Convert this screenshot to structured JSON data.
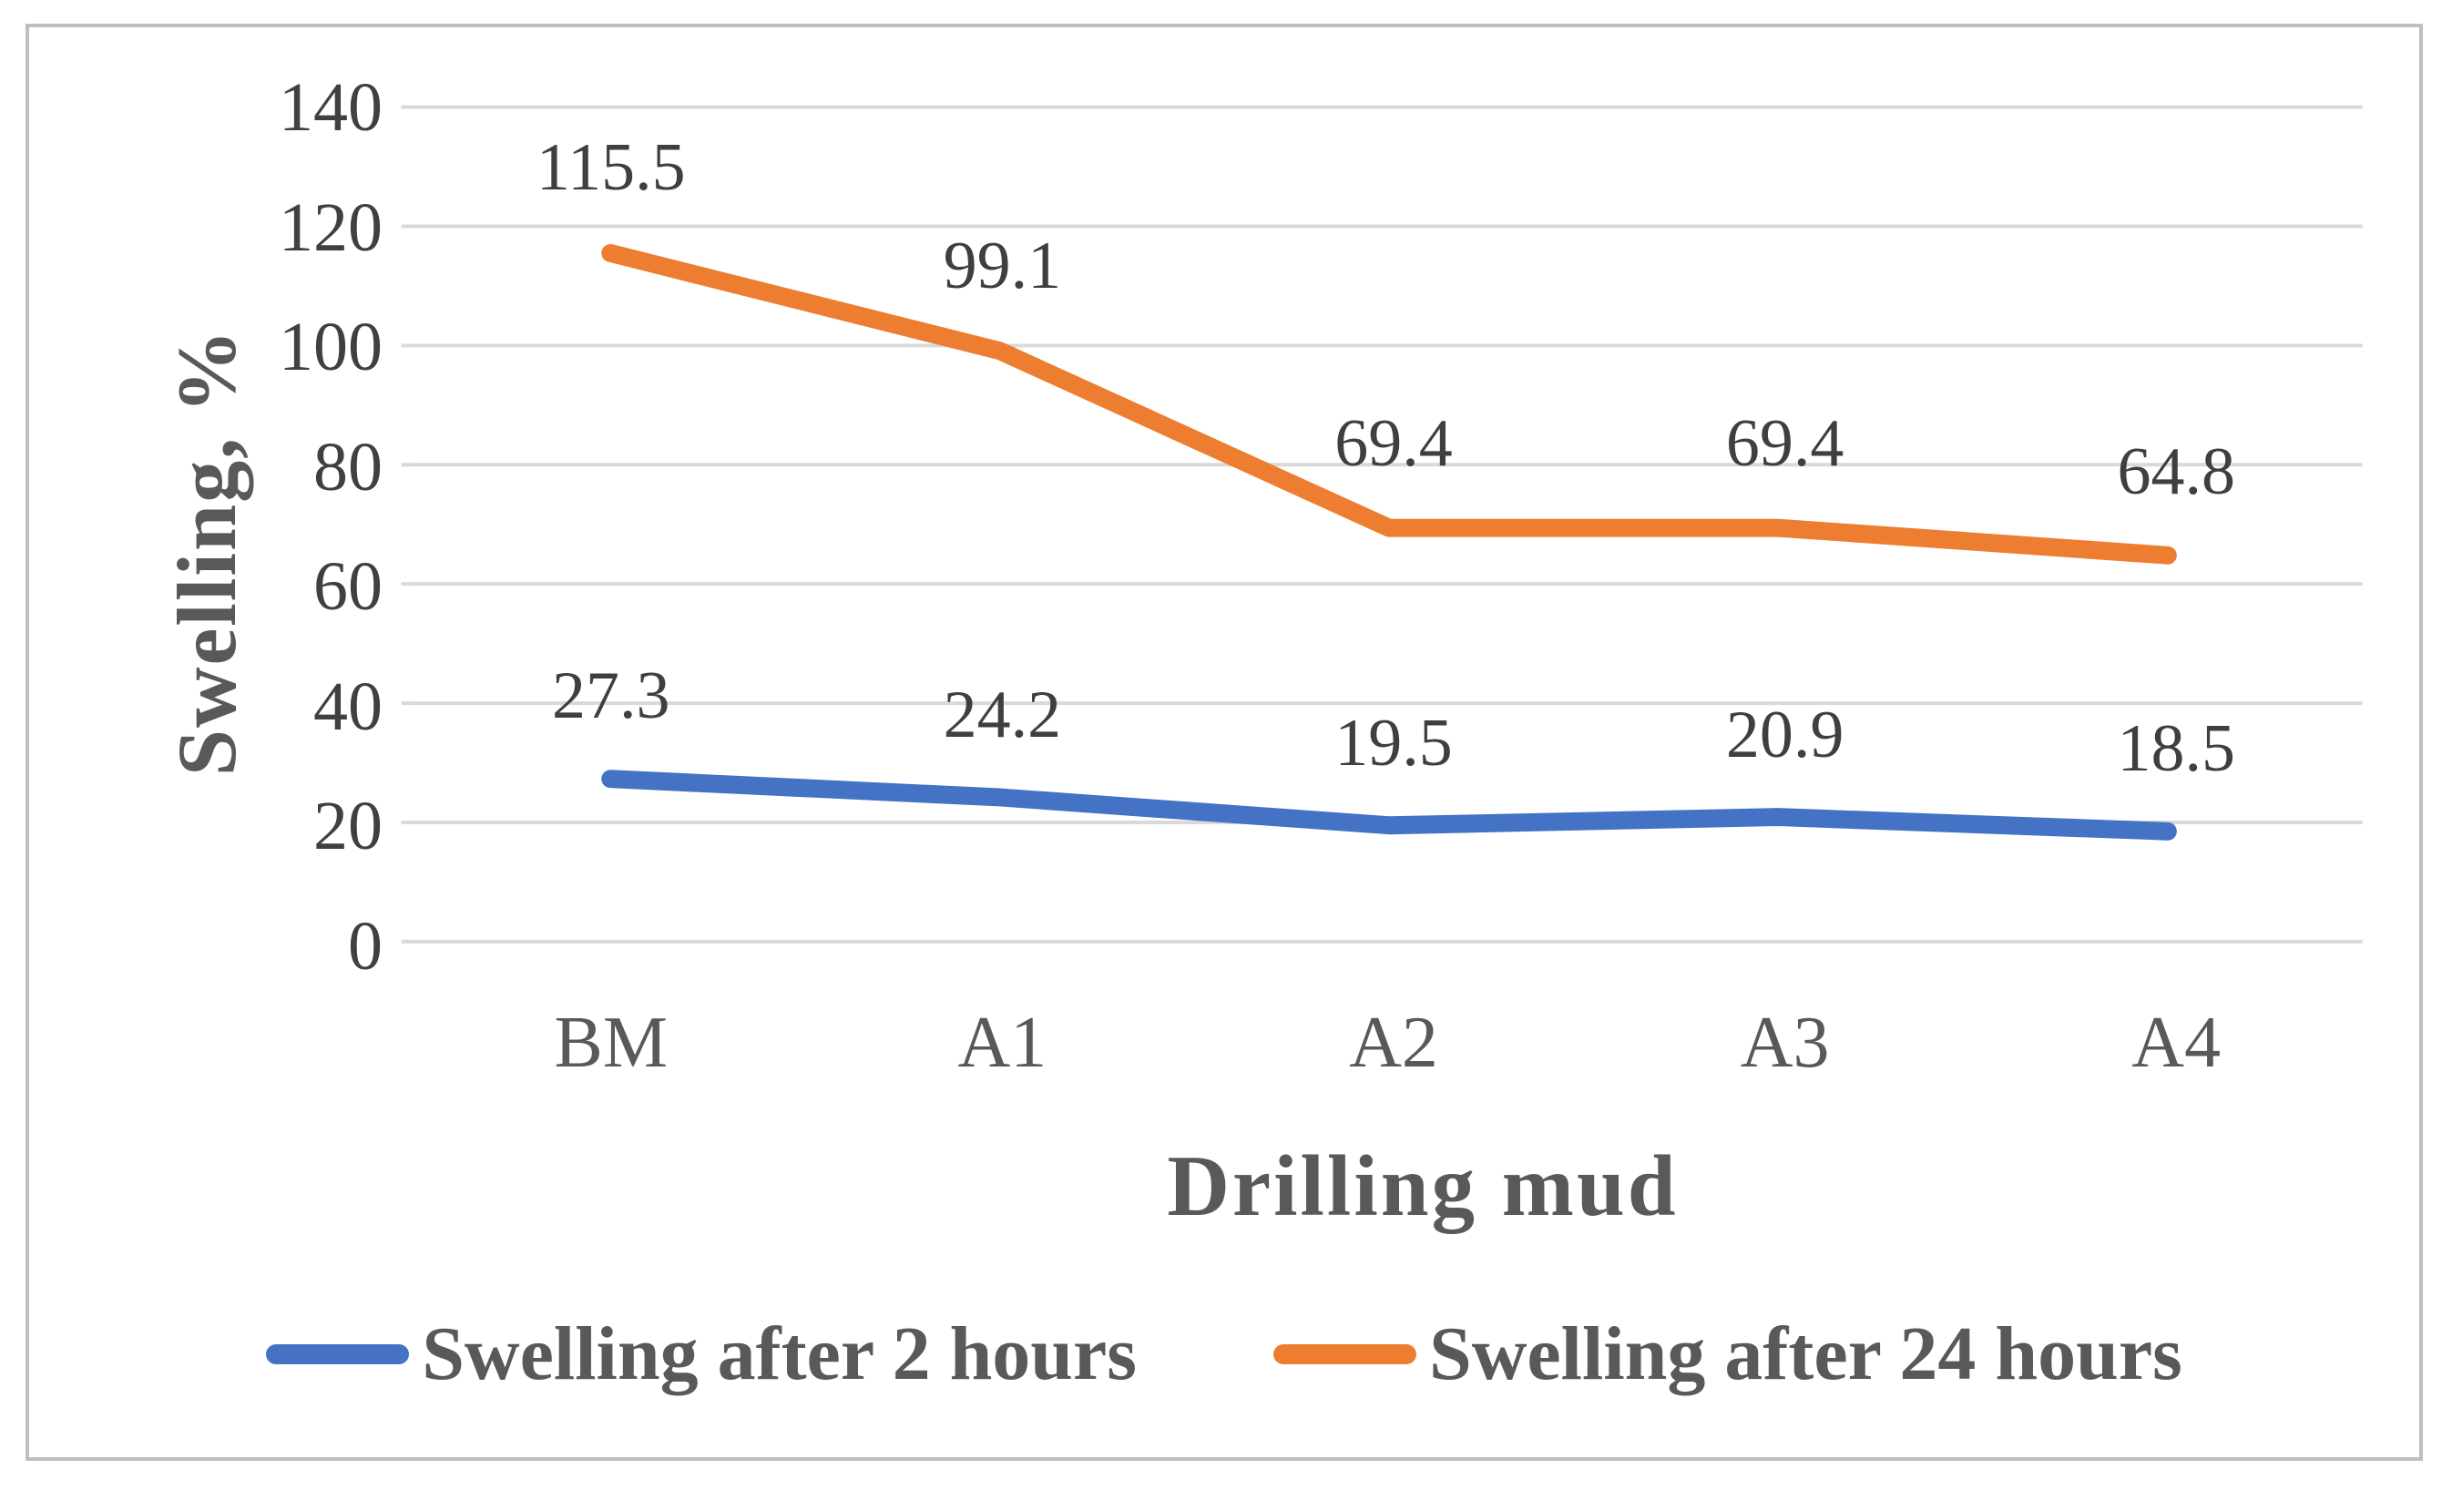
{
  "chart_data": {
    "type": "line",
    "categories": [
      "BM",
      "A1",
      "A2",
      "A3",
      "A4"
    ],
    "series": [
      {
        "name": "Swelling after 2 hours",
        "color": "#4472C4",
        "values": [
          27.3,
          24.2,
          19.5,
          20.9,
          18.5
        ]
      },
      {
        "name": "Swelling after 24 hours",
        "color": "#ED7D31",
        "values": [
          115.5,
          99.1,
          69.4,
          69.4,
          64.8
        ]
      }
    ],
    "title": "",
    "xlabel": "Drilling mud",
    "ylabel": "Swelling, %",
    "ylim": [
      0,
      140
    ],
    "yticks": [
      0,
      20,
      40,
      60,
      80,
      100,
      120,
      140
    ],
    "grid": true,
    "data_labels": true,
    "legend_position": "bottom"
  },
  "colors": {
    "grid": "#d9d9d9",
    "tick_text": "#404040",
    "axis_text": "#595959",
    "border": "#bfbfbf",
    "background": "#ffffff"
  }
}
